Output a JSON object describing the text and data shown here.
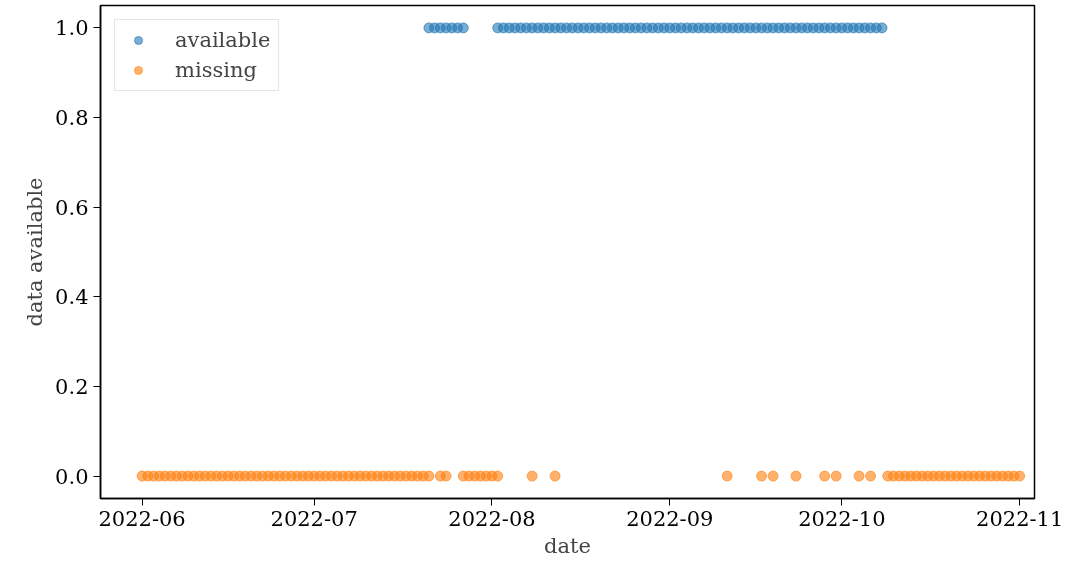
{
  "chart_data": {
    "type": "scatter",
    "xlabel": "date",
    "ylabel": "data available",
    "xlim": [
      "2022-05-24T18:00",
      "2022-11-03T14:00"
    ],
    "ylim": [
      -0.05,
      1.05
    ],
    "xticks": [
      {
        "value": "2022-06-01",
        "label": "2022-06"
      },
      {
        "value": "2022-07-01",
        "label": "2022-07"
      },
      {
        "value": "2022-08-01",
        "label": "2022-08"
      },
      {
        "value": "2022-09-01",
        "label": "2022-09"
      },
      {
        "value": "2022-10-01",
        "label": "2022-10"
      },
      {
        "value": "2022-11-01",
        "label": "2022-11"
      }
    ],
    "yticks": [
      {
        "value": 0,
        "label": "0.0"
      },
      {
        "value": 0.2,
        "label": "0.2"
      },
      {
        "value": 0.4,
        "label": "0.4"
      },
      {
        "value": 0.6,
        "label": "0.6"
      },
      {
        "value": 0.8,
        "label": "0.8"
      },
      {
        "value": 1,
        "label": "1.0"
      }
    ],
    "grid": false,
    "legend": "top left",
    "marker": "circle",
    "series": [
      {
        "name": "available",
        "color": "#1f77b4",
        "x": [
          "2022-07-21",
          "2022-07-22",
          "2022-07-23",
          "2022-07-24",
          "2022-07-25",
          "2022-07-26",
          "2022-07-27",
          "2022-08-02",
          "2022-08-03",
          "2022-08-04",
          "2022-08-05",
          "2022-08-06",
          "2022-08-07",
          "2022-08-08",
          "2022-08-09",
          "2022-08-10",
          "2022-08-11",
          "2022-08-12",
          "2022-08-13",
          "2022-08-14",
          "2022-08-15",
          "2022-08-16",
          "2022-08-17",
          "2022-08-18",
          "2022-08-19",
          "2022-08-20",
          "2022-08-21",
          "2022-08-22",
          "2022-08-23",
          "2022-08-24",
          "2022-08-25",
          "2022-08-26",
          "2022-08-27",
          "2022-08-28",
          "2022-08-29",
          "2022-08-30",
          "2022-08-31",
          "2022-09-01",
          "2022-09-02",
          "2022-09-03",
          "2022-09-04",
          "2022-09-05",
          "2022-09-06",
          "2022-09-07",
          "2022-09-08",
          "2022-09-09",
          "2022-09-10",
          "2022-09-11",
          "2022-09-12",
          "2022-09-13",
          "2022-09-14",
          "2022-09-15",
          "2022-09-16",
          "2022-09-17",
          "2022-09-18",
          "2022-09-19",
          "2022-09-20",
          "2022-09-21",
          "2022-09-22",
          "2022-09-23",
          "2022-09-24",
          "2022-09-25",
          "2022-09-26",
          "2022-09-27",
          "2022-09-28",
          "2022-09-29",
          "2022-09-30",
          "2022-10-01",
          "2022-10-02",
          "2022-10-03",
          "2022-10-04",
          "2022-10-05",
          "2022-10-06",
          "2022-10-07",
          "2022-10-08"
        ],
        "values": [
          1,
          1,
          1,
          1,
          1,
          1,
          1,
          1,
          1,
          1,
          1,
          1,
          1,
          1,
          1,
          1,
          1,
          1,
          1,
          1,
          1,
          1,
          1,
          1,
          1,
          1,
          1,
          1,
          1,
          1,
          1,
          1,
          1,
          1,
          1,
          1,
          1,
          1,
          1,
          1,
          1,
          1,
          1,
          1,
          1,
          1,
          1,
          1,
          1,
          1,
          1,
          1,
          1,
          1,
          1,
          1,
          1,
          1,
          1,
          1,
          1,
          1,
          1,
          1,
          1,
          1,
          1,
          1,
          1,
          1,
          1,
          1,
          1,
          1,
          1
        ]
      },
      {
        "name": "missing",
        "color": "#ff7f0e",
        "x": [
          "2022-06-01",
          "2022-06-02",
          "2022-06-03",
          "2022-06-04",
          "2022-06-05",
          "2022-06-06",
          "2022-06-07",
          "2022-06-08",
          "2022-06-09",
          "2022-06-10",
          "2022-06-11",
          "2022-06-12",
          "2022-06-13",
          "2022-06-14",
          "2022-06-15",
          "2022-06-16",
          "2022-06-17",
          "2022-06-18",
          "2022-06-19",
          "2022-06-20",
          "2022-06-21",
          "2022-06-22",
          "2022-06-23",
          "2022-06-24",
          "2022-06-25",
          "2022-06-26",
          "2022-06-27",
          "2022-06-28",
          "2022-06-29",
          "2022-06-30",
          "2022-07-01",
          "2022-07-02",
          "2022-07-03",
          "2022-07-04",
          "2022-07-05",
          "2022-07-06",
          "2022-07-07",
          "2022-07-08",
          "2022-07-09",
          "2022-07-10",
          "2022-07-11",
          "2022-07-12",
          "2022-07-13",
          "2022-07-14",
          "2022-07-15",
          "2022-07-16",
          "2022-07-17",
          "2022-07-18",
          "2022-07-19",
          "2022-07-20",
          "2022-07-21",
          "2022-07-23",
          "2022-07-24",
          "2022-07-27",
          "2022-07-28",
          "2022-07-29",
          "2022-07-30",
          "2022-07-31",
          "2022-08-01",
          "2022-08-02",
          "2022-08-08",
          "2022-08-12",
          "2022-09-11",
          "2022-09-17",
          "2022-09-19",
          "2022-09-23",
          "2022-09-28",
          "2022-09-30",
          "2022-10-04",
          "2022-10-06",
          "2022-10-09",
          "2022-10-10",
          "2022-10-11",
          "2022-10-12",
          "2022-10-13",
          "2022-10-14",
          "2022-10-15",
          "2022-10-16",
          "2022-10-17",
          "2022-10-18",
          "2022-10-19",
          "2022-10-20",
          "2022-10-21",
          "2022-10-22",
          "2022-10-23",
          "2022-10-24",
          "2022-10-25",
          "2022-10-26",
          "2022-10-27",
          "2022-10-28",
          "2022-10-29",
          "2022-10-30",
          "2022-10-31",
          "2022-11-01"
        ],
        "values": [
          0,
          0,
          0,
          0,
          0,
          0,
          0,
          0,
          0,
          0,
          0,
          0,
          0,
          0,
          0,
          0,
          0,
          0,
          0,
          0,
          0,
          0,
          0,
          0,
          0,
          0,
          0,
          0,
          0,
          0,
          0,
          0,
          0,
          0,
          0,
          0,
          0,
          0,
          0,
          0,
          0,
          0,
          0,
          0,
          0,
          0,
          0,
          0,
          0,
          0,
          0,
          0,
          0,
          0,
          0,
          0,
          0,
          0,
          0,
          0,
          0,
          0,
          0,
          0,
          0,
          0,
          0,
          0,
          0,
          0,
          0,
          0,
          0,
          0,
          0,
          0,
          0,
          0,
          0,
          0,
          0,
          0,
          0,
          0,
          0,
          0,
          0,
          0,
          0,
          0,
          0,
          0,
          0,
          0
        ]
      }
    ]
  }
}
